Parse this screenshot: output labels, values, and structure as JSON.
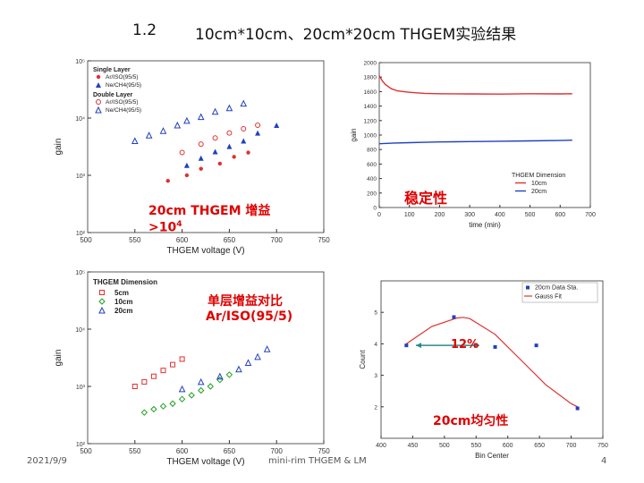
{
  "slide": {
    "section_number": "1.2",
    "title": "10cm*10cm、20cm*20cm THGEM实验结果",
    "date": "2021/9/9",
    "footer": "mini-rim THGEM & LM",
    "page_number": "4"
  },
  "annotations": {
    "gain_label": "20cm THGEM 增益",
    "gain_value": ">10",
    "gain_exp": "4",
    "stability": "稳定性",
    "single_layer_title": "单层增益对比",
    "single_layer_gas": "Ar/ISO(95/5)",
    "uniformity_pct": "12%",
    "uniformity": "20cm均匀性"
  },
  "chart_data": [
    {
      "type": "scatter",
      "xlabel": "THGEM voltage (V)",
      "ylabel": "gain",
      "xlim": [
        500,
        750
      ],
      "yscale": "log",
      "ylim": [
        100,
        100000
      ],
      "x_ticks": [
        "550",
        "600",
        "650",
        "700",
        "750"
      ],
      "y_ticks": [
        "10²",
        "10³",
        "10⁴",
        "10⁵"
      ],
      "legend_group_single": "Single Layer",
      "legend_group_double": "Double Layer",
      "series": [
        {
          "name": "Ar/ISO(95/5)",
          "color": "#e03030",
          "marker": "dot",
          "points": [
            [
              585,
              800
            ],
            [
              605,
              1000
            ],
            [
              620,
              1300
            ],
            [
              640,
              1600
            ],
            [
              655,
              2100
            ],
            [
              670,
              2500
            ]
          ]
        },
        {
          "name": "Ne/CH4(95/5)",
          "color": "#2040c0",
          "marker": "tri",
          "points": [
            [
              605,
              1500
            ],
            [
              620,
              2000
            ],
            [
              635,
              2600
            ],
            [
              650,
              3200
            ],
            [
              665,
              4000
            ],
            [
              680,
              5500
            ],
            [
              700,
              7500
            ]
          ]
        },
        {
          "name": "Ar/ISO(95/5)",
          "color": "#e03030",
          "marker": "circle",
          "points": [
            [
              600,
              2500
            ],
            [
              620,
              3500
            ],
            [
              635,
              4500
            ],
            [
              650,
              5500
            ],
            [
              665,
              6500
            ],
            [
              680,
              7500
            ]
          ]
        },
        {
          "name": "Ne/CH4(95/5)",
          "color": "#2040c0",
          "marker": "tri-open",
          "points": [
            [
              550,
              4000
            ],
            [
              565,
              5000
            ],
            [
              580,
              6000
            ],
            [
              595,
              7500
            ],
            [
              605,
              9000
            ],
            [
              620,
              10500
            ],
            [
              635,
              13000
            ],
            [
              650,
              15000
            ],
            [
              665,
              18000
            ]
          ]
        }
      ]
    },
    {
      "type": "line",
      "xlabel": "time (min)",
      "ylabel": "gain",
      "xlim": [
        0,
        700
      ],
      "ylim": [
        0,
        2000
      ],
      "x_ticks": [
        "0",
        "100",
        "200",
        "300",
        "400",
        "500",
        "600",
        "700"
      ],
      "y_ticks": [
        "0",
        "200",
        "400",
        "600",
        "800",
        "1000",
        "1200",
        "1400",
        "1600",
        "1800",
        "2000"
      ],
      "legend_title": "THGEM Dimension",
      "series": [
        {
          "name": "10cm",
          "color": "#e03030",
          "x": [
            0,
            10,
            20,
            40,
            60,
            100,
            150,
            200,
            300,
            400,
            500,
            600,
            640
          ],
          "values": [
            1820,
            1750,
            1700,
            1640,
            1610,
            1590,
            1575,
            1570,
            1568,
            1565,
            1570,
            1568,
            1570
          ]
        },
        {
          "name": "20cm",
          "color": "#2040c0",
          "x": [
            0,
            50,
            100,
            150,
            200,
            300,
            400,
            500,
            600,
            640
          ],
          "values": [
            880,
            890,
            895,
            900,
            905,
            910,
            915,
            920,
            925,
            930
          ]
        }
      ]
    },
    {
      "type": "scatter",
      "xlabel": "THGEM voltage (V)",
      "ylabel": "gain",
      "xlim": [
        500,
        750
      ],
      "yscale": "log",
      "ylim": [
        100,
        100000
      ],
      "x_ticks": [
        "550",
        "600",
        "650",
        "700",
        "750"
      ],
      "y_ticks": [
        "10²",
        "10³",
        "10⁴",
        "10⁵"
      ],
      "legend_title": "THGEM Dimension",
      "series": [
        {
          "name": "5cm",
          "color": "#e03030",
          "marker": "square",
          "points": [
            [
              550,
              1000
            ],
            [
              560,
              1200
            ],
            [
              570,
              1500
            ],
            [
              580,
              1900
            ],
            [
              590,
              2400
            ],
            [
              600,
              3000
            ]
          ]
        },
        {
          "name": "10cm",
          "color": "#20a020",
          "marker": "diamond",
          "points": [
            [
              560,
              350
            ],
            [
              570,
              400
            ],
            [
              580,
              450
            ],
            [
              590,
              500
            ],
            [
              600,
              600
            ],
            [
              610,
              700
            ],
            [
              620,
              850
            ],
            [
              630,
              1000
            ],
            [
              640,
              1300
            ],
            [
              650,
              1600
            ]
          ]
        },
        {
          "name": "20cm",
          "color": "#2040c0",
          "marker": "tri-open",
          "points": [
            [
              600,
              900
            ],
            [
              620,
              1200
            ],
            [
              640,
              1500
            ],
            [
              660,
              2000
            ],
            [
              670,
              2600
            ],
            [
              680,
              3300
            ],
            [
              690,
              4500
            ]
          ]
        }
      ]
    },
    {
      "type": "scatter",
      "xlabel": "Bin Center",
      "ylabel": "Count",
      "xlim": [
        400,
        750
      ],
      "ylim": [
        1,
        6
      ],
      "x_ticks": [
        "400",
        "450",
        "500",
        "550",
        "600",
        "650",
        "700",
        "750"
      ],
      "y_ticks": [
        "2",
        "3",
        "4",
        "5"
      ],
      "legend": [
        "20cm Data Sta.",
        "Gauss Fit"
      ],
      "series": [
        {
          "name": "20cm Data Sta.",
          "color": "#2040c0",
          "x": [
            440,
            515,
            580,
            645,
            710
          ],
          "values": [
            3.95,
            4.85,
            3.9,
            3.95,
            1.95
          ]
        },
        {
          "name": "Gauss Fit",
          "color": "#e03030",
          "x": [
            440,
            480,
            520,
            530,
            540,
            580,
            620,
            660,
            700,
            710
          ],
          "values": [
            4.0,
            4.55,
            4.82,
            4.84,
            4.8,
            4.3,
            3.5,
            2.7,
            2.1,
            2.0
          ]
        }
      ]
    }
  ]
}
